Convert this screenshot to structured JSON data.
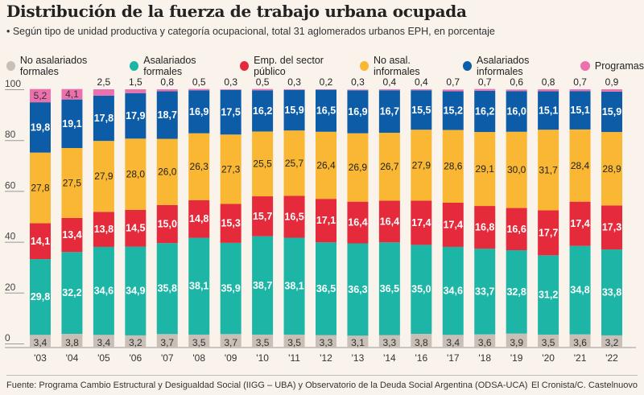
{
  "header": {
    "title": "Distribución de la fuerza de trabajo urbana ocupada",
    "subtitle": "• Según tipo de unidad productiva y categoría ocupacional, total 31 aglomerados urbanos EPH, en porcentaje"
  },
  "footer": {
    "source": "Fuente: Programa Cambio Estructural y Desigualdad Social (IIGG – UBA) y Observatorio de la Deuda Social Argentina (ODSA-UCA)",
    "credit": "El Cronista/C. Castelnuovo"
  },
  "chart_data": {
    "type": "bar",
    "stacked": true,
    "categories": [
      "'03",
      "'04",
      "'05",
      "'06",
      "'07",
      "'08",
      "'09",
      "'10",
      "'11",
      "'12",
      "'13",
      "'14",
      "'16",
      "'17",
      "'18",
      "'19",
      "'20",
      "'21",
      "'22"
    ],
    "y_ticks": [
      0,
      20,
      40,
      60,
      80,
      100
    ],
    "ylim": [
      0,
      100
    ],
    "grid": true,
    "legend_position": "top",
    "series": [
      {
        "name": "No asalariados formales",
        "color": "#c8bfb7",
        "values": [
          3.4,
          3.8,
          3.4,
          3.2,
          3.7,
          3.5,
          3.7,
          3.5,
          3.5,
          3.3,
          3.1,
          3.3,
          3.8,
          3.4,
          3.6,
          3.9,
          3.5,
          3.6,
          3.2
        ]
      },
      {
        "name": "Asalariados formales",
        "color": "#1db5a6",
        "values": [
          29.8,
          32.2,
          34.6,
          34.9,
          35.8,
          38.1,
          35.9,
          38.7,
          38.1,
          36.5,
          36.3,
          36.5,
          35.0,
          34.6,
          33.7,
          32.8,
          31.2,
          34.8,
          33.8
        ]
      },
      {
        "name": "Emp. del sector público",
        "color": "#e42a3b",
        "values": [
          14.1,
          13.4,
          13.8,
          14.5,
          15.0,
          14.8,
          15.3,
          15.7,
          16.5,
          17.1,
          16.4,
          16.4,
          17.4,
          17.4,
          16.8,
          16.6,
          17.7,
          17.4,
          17.3
        ]
      },
      {
        "name": "No asal. informales",
        "color": "#f9b733",
        "values": [
          27.8,
          27.5,
          27.9,
          28.0,
          26.0,
          26.3,
          27.3,
          25.5,
          25.7,
          26.4,
          26.9,
          26.7,
          27.9,
          28.6,
          29.1,
          30.0,
          31.7,
          28.4,
          28.9
        ]
      },
      {
        "name": "Asalariados informales",
        "color": "#0d5ca8",
        "values": [
          19.8,
          19.1,
          17.8,
          17.9,
          18.7,
          16.9,
          17.5,
          16.2,
          15.9,
          16.5,
          16.9,
          16.7,
          15.5,
          15.2,
          16.2,
          16.0,
          15.1,
          15.1,
          15.9
        ]
      },
      {
        "name": "Programas",
        "color": "#ec6fae",
        "values": [
          5.2,
          4.1,
          2.5,
          1.5,
          0.8,
          0.5,
          0.3,
          0.5,
          0.3,
          0.2,
          0.3,
          0.4,
          0.4,
          0.7,
          0.7,
          0.6,
          0.8,
          0.7,
          0.9
        ]
      }
    ]
  }
}
